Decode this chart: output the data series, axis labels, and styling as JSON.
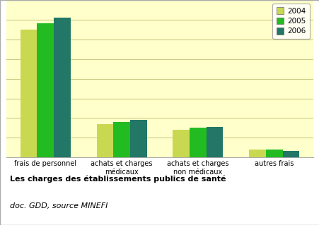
{
  "categories": [
    "frais de personnel",
    "achats et charges\nmédicaux",
    "achats et charges\nnon médicaux",
    "autres frais"
  ],
  "years": [
    "2004",
    "2005",
    "2006"
  ],
  "values": [
    [
      65,
      17,
      14,
      4
    ],
    [
      68,
      18,
      15,
      4
    ],
    [
      71,
      19,
      15.5,
      3.5
    ]
  ],
  "colors": [
    "#c8d850",
    "#22bb22",
    "#227766"
  ],
  "bar_width": 0.22,
  "background_color": "#ffffcc",
  "plot_bg_color": "#ffffcc",
  "bottom_bg_color": "#ffffff",
  "grid_color": "#cccc88",
  "title_bold": "Les charges des établissements publics de santé",
  "title_italic": "doc. GDD, source MINEFI",
  "years_legend": [
    "2004",
    "2005",
    "2006"
  ],
  "ylim": [
    0,
    80
  ],
  "yticks": [
    0,
    10,
    20,
    30,
    40,
    50,
    60,
    70,
    80
  ]
}
